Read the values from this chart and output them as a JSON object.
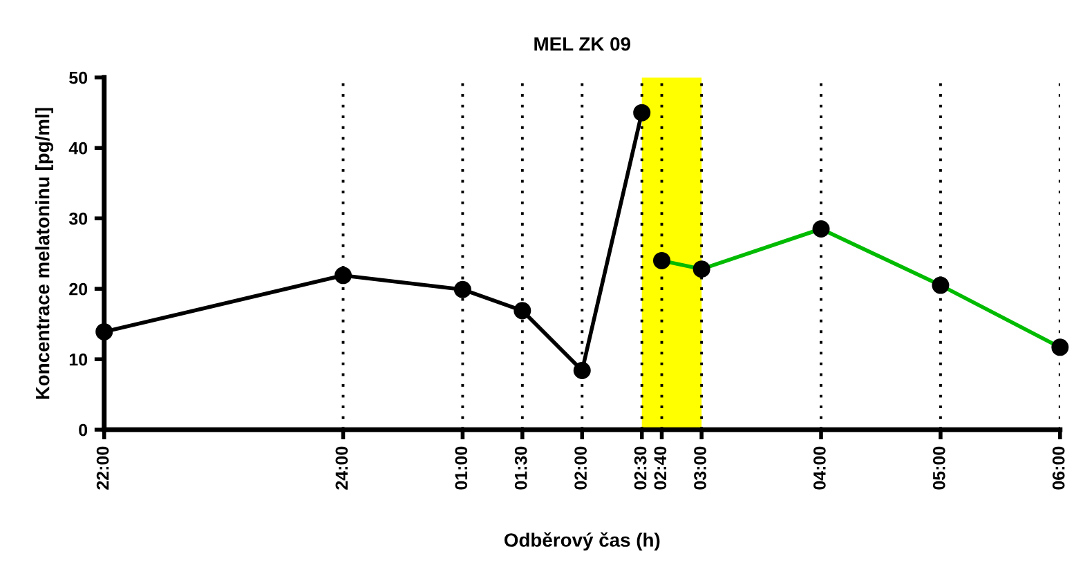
{
  "chart_data": {
    "type": "line",
    "title": "MEL ZK 09",
    "xlabel": "Odběrový čas (h)",
    "ylabel": "Koncentrace melatoninu [pg/ml]",
    "series": [
      {
        "color": "#000000",
        "x": [
          "2000-01-01T22:00",
          "2000-01-02T00:00",
          "2000-01-02T01:00",
          "2000-01-02T01:30",
          "2000-01-02T02:00",
          "2000-01-02T02:30"
        ],
        "values": [
          13.9,
          21.9,
          19.9,
          16.9,
          8.4,
          45.0
        ]
      },
      {
        "color": "#00bb00",
        "x": [
          "2000-01-02T02:40",
          "2000-01-02T03:00",
          "2000-01-02T04:00",
          "2000-01-02T05:00",
          "2000-01-02T06:00"
        ],
        "values": [
          24.0,
          22.8,
          28.5,
          20.5,
          11.7
        ]
      }
    ],
    "xlim": [
      "2000-01-01T22:00",
      "2000-01-02T06:00"
    ],
    "ylim": [
      0,
      50
    ],
    "xticks": [
      {
        "value": "2000-01-01T22:00",
        "label": "22:00"
      },
      {
        "value": "2000-01-02T00:00",
        "label": "24:00"
      },
      {
        "value": "2000-01-02T01:00",
        "label": "01:00"
      },
      {
        "value": "2000-01-02T01:30",
        "label": "01:30"
      },
      {
        "value": "2000-01-02T02:00",
        "label": "02:00"
      },
      {
        "value": "2000-01-02T02:30",
        "label": "02:30"
      },
      {
        "value": "2000-01-02T02:40",
        "label": "02:40"
      },
      {
        "value": "2000-01-02T03:00",
        "label": "03:00"
      },
      {
        "value": "2000-01-02T04:00",
        "label": "04:00"
      },
      {
        "value": "2000-01-02T05:00",
        "label": "05:00"
      },
      {
        "value": "2000-01-02T06:00",
        "label": "06:00"
      }
    ],
    "yticks": [
      0,
      10,
      20,
      30,
      40,
      50
    ],
    "bands": [
      {
        "axis": "x",
        "from": "2000-01-02T02:30",
        "to": "2000-01-02T03:00",
        "color": "#ffff00"
      }
    ],
    "grid": "x",
    "marker": "circle",
    "line_style": "solid",
    "legend": false
  }
}
